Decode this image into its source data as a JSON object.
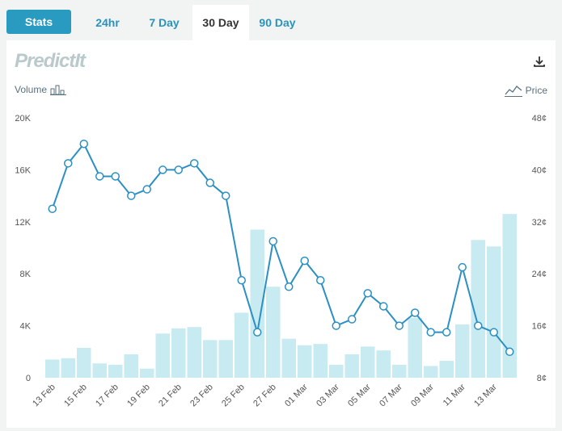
{
  "tabs": {
    "stats_label": "Stats",
    "items": [
      {
        "label": "24hr",
        "active": false
      },
      {
        "label": "7 Day",
        "active": false
      },
      {
        "label": "30 Day",
        "active": true
      },
      {
        "label": "90 Day",
        "active": false
      }
    ]
  },
  "logo": "PredictIt",
  "volume_label": "Volume",
  "price_label": "Price",
  "icons": {
    "download": "download-icon",
    "volume": "bar-chart-icon",
    "price": "line-chart-icon"
  },
  "colors": {
    "accent": "#2a9bc0",
    "line": "#2b8fc4",
    "bar": "#c8eaf1"
  },
  "chart_data": {
    "type": "bar+line",
    "x_tick_labels": [
      "13 Feb",
      "15 Feb",
      "17 Feb",
      "19 Feb",
      "21 Feb",
      "23 Feb",
      "25 Feb",
      "27 Feb",
      "01 Mar",
      "03 Mar",
      "05 Mar",
      "07 Mar",
      "09 Mar",
      "11 Mar",
      "13 Mar"
    ],
    "left_axis": {
      "label": "Volume",
      "ticks": [
        "0",
        "4K",
        "8K",
        "12K",
        "16K",
        "20K"
      ],
      "ylim": [
        0,
        20000
      ]
    },
    "right_axis": {
      "label": "Price",
      "ticks": [
        "8¢",
        "16¢",
        "24¢",
        "32¢",
        "40¢",
        "48¢"
      ],
      "ylim": [
        8,
        48
      ]
    },
    "series": [
      {
        "name": "Volume",
        "type": "bar",
        "values": [
          1400,
          1500,
          2300,
          1100,
          1000,
          1800,
          700,
          3400,
          3800,
          3900,
          2900,
          2900,
          5000,
          11400,
          7000,
          3000,
          2500,
          2600,
          1000,
          1800,
          2400,
          2100,
          1000,
          4600,
          900,
          1300,
          4100,
          10600,
          10100,
          12600
        ]
      },
      {
        "name": "Price",
        "type": "line",
        "values": [
          34,
          41,
          44,
          39,
          39,
          36,
          37,
          40,
          40,
          41,
          38,
          36,
          23,
          15,
          29,
          22,
          26,
          23,
          16,
          17,
          21,
          19,
          16,
          18,
          15,
          15,
          25,
          16,
          15,
          12
        ]
      }
    ]
  }
}
